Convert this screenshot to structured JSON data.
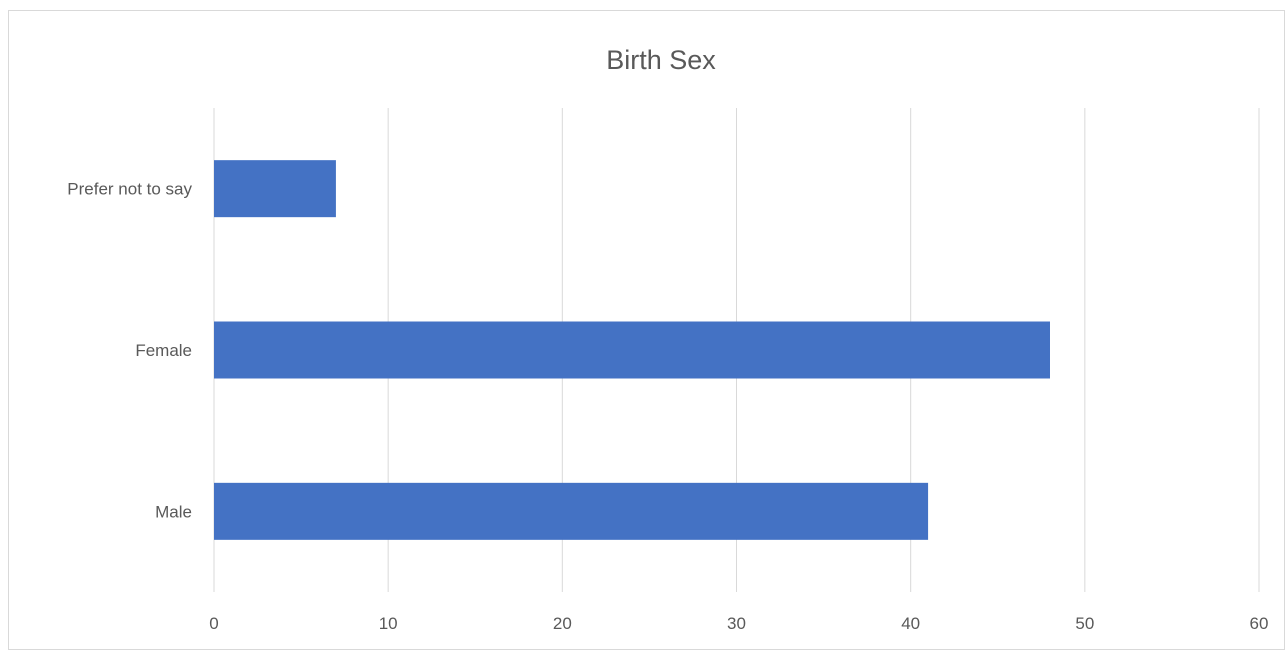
{
  "chart_data": {
    "type": "bar",
    "orientation": "horizontal",
    "title": "Birth Sex",
    "xlabel": "",
    "ylabel": "",
    "categories": [
      "Male",
      "Female",
      "Prefer not to say"
    ],
    "values": [
      41,
      48,
      7
    ],
    "xlim": [
      0,
      60
    ],
    "x_ticks": [
      "0",
      "10",
      "20",
      "30",
      "40",
      "50",
      "60"
    ],
    "grid": true,
    "legend": "none",
    "bar_color": "#4472C4"
  }
}
